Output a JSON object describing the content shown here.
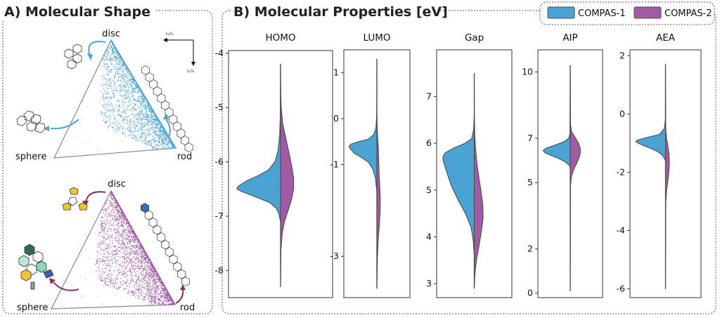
{
  "colors": {
    "compas1": "#4aa3d2",
    "compas2": "#a15aa4",
    "outline": "#4d4d4d"
  },
  "panel_a": {
    "title": "A)  Molecular Shape",
    "ternary_labels": {
      "top": "disc",
      "left": "sphere",
      "right": "rod"
    },
    "inset_axis_labels": {
      "horizontal": "I₁/I₃",
      "vertical": "I₂/I₃"
    }
  },
  "panel_b": {
    "title": "B) Molecular Properties [eV]"
  },
  "chart_data": {
    "type": "violin",
    "legend": {
      "position": "top-right",
      "entries": [
        "COMPAS-1",
        "COMPAS-2"
      ]
    },
    "series": [
      {
        "name": "COMPAS-1",
        "side": "left"
      },
      {
        "name": "COMPAS-2",
        "side": "right"
      }
    ],
    "panels": [
      {
        "label": "HOMO",
        "ylim": [
          -8.5,
          -3.95
        ],
        "ticks": [
          -4,
          -5,
          -6,
          -7,
          -8
        ],
        "ymin": -8.3,
        "ymax": -4.2,
        "compas1": [
          [
            -8.3,
            0
          ],
          [
            -7.1,
            0
          ],
          [
            -6.95,
            0.04
          ],
          [
            -6.85,
            0.1
          ],
          [
            -6.75,
            0.25
          ],
          [
            -6.65,
            0.55
          ],
          [
            -6.55,
            0.88
          ],
          [
            -6.5,
            1.0
          ],
          [
            -6.45,
            0.97
          ],
          [
            -6.35,
            0.78
          ],
          [
            -6.25,
            0.5
          ],
          [
            -6.15,
            0.28
          ],
          [
            -6.0,
            0.13
          ],
          [
            -5.8,
            0.06
          ],
          [
            -5.5,
            0.02
          ],
          [
            -5.1,
            0.005
          ],
          [
            -4.2,
            0
          ]
        ],
        "compas2": [
          [
            -8.3,
            0
          ],
          [
            -7.6,
            0.01
          ],
          [
            -7.3,
            0.04
          ],
          [
            -7.1,
            0.09
          ],
          [
            -6.9,
            0.17
          ],
          [
            -6.7,
            0.25
          ],
          [
            -6.5,
            0.3
          ],
          [
            -6.3,
            0.3
          ],
          [
            -6.1,
            0.26
          ],
          [
            -5.9,
            0.21
          ],
          [
            -5.6,
            0.13
          ],
          [
            -5.3,
            0.05
          ],
          [
            -5.0,
            0.015
          ],
          [
            -4.7,
            0.005
          ],
          [
            -4.2,
            0
          ]
        ]
      },
      {
        "label": "LUMO",
        "ylim": [
          -3.9,
          1.5
        ],
        "ticks": [
          1,
          0,
          -1,
          -3
        ],
        "ymin": -3.7,
        "ymax": 1.3,
        "compas1": [
          [
            -3.7,
            0
          ],
          [
            -1.6,
            0
          ],
          [
            -1.3,
            0.05
          ],
          [
            -1.1,
            0.15
          ],
          [
            -0.95,
            0.3
          ],
          [
            -0.85,
            0.55
          ],
          [
            -0.75,
            0.82
          ],
          [
            -0.65,
            0.97
          ],
          [
            -0.6,
            1.0
          ],
          [
            -0.55,
            0.92
          ],
          [
            -0.5,
            0.65
          ],
          [
            -0.45,
            0.32
          ],
          [
            -0.35,
            0.12
          ],
          [
            -0.2,
            0.03
          ],
          [
            0.1,
            0.005
          ],
          [
            1.3,
            0
          ]
        ],
        "compas2": [
          [
            -3.7,
            0
          ],
          [
            -3.0,
            0.02
          ],
          [
            -2.6,
            0.05
          ],
          [
            -2.3,
            0.09
          ],
          [
            -2.0,
            0.12
          ],
          [
            -1.7,
            0.12
          ],
          [
            -1.4,
            0.1
          ],
          [
            -1.2,
            0.08
          ],
          [
            -1.0,
            0.07
          ],
          [
            -0.8,
            0.06
          ],
          [
            -0.6,
            0.05
          ],
          [
            -0.4,
            0.025
          ],
          [
            -0.1,
            0.008
          ],
          [
            0.3,
            0
          ],
          [
            1.3,
            0
          ]
        ]
      },
      {
        "label": "Gap",
        "ylim": [
          2.7,
          8.0
        ],
        "ticks": [
          7,
          6,
          5,
          4,
          3
        ],
        "ymin": 2.9,
        "ymax": 7.5,
        "compas1": [
          [
            2.9,
            0
          ],
          [
            3.6,
            0
          ],
          [
            3.9,
            0.03
          ],
          [
            4.2,
            0.1
          ],
          [
            4.5,
            0.28
          ],
          [
            4.8,
            0.52
          ],
          [
            5.1,
            0.73
          ],
          [
            5.4,
            0.88
          ],
          [
            5.6,
            0.97
          ],
          [
            5.7,
            1.0
          ],
          [
            5.8,
            0.92
          ],
          [
            5.9,
            0.65
          ],
          [
            6.0,
            0.3
          ],
          [
            6.1,
            0.08
          ],
          [
            6.3,
            0.02
          ],
          [
            6.6,
            0
          ],
          [
            7.5,
            0
          ]
        ],
        "compas2": [
          [
            2.9,
            0
          ],
          [
            3.2,
            0.02
          ],
          [
            3.5,
            0.07
          ],
          [
            3.8,
            0.15
          ],
          [
            4.1,
            0.22
          ],
          [
            4.4,
            0.28
          ],
          [
            4.7,
            0.27
          ],
          [
            5.0,
            0.21
          ],
          [
            5.3,
            0.14
          ],
          [
            5.6,
            0.08
          ],
          [
            5.9,
            0.04
          ],
          [
            6.2,
            0.015
          ],
          [
            6.6,
            0.004
          ],
          [
            7.5,
            0
          ]
        ]
      },
      {
        "label": "AIP",
        "ylim": [
          -0.2,
          11.0
        ],
        "ticks": [
          10,
          7,
          5,
          2,
          0
        ],
        "ymin": 0.1,
        "ymax": 10.3,
        "compas1": [
          [
            0.1,
            0
          ],
          [
            5.7,
            0
          ],
          [
            5.8,
            0.05
          ],
          [
            5.95,
            0.2
          ],
          [
            6.1,
            0.45
          ],
          [
            6.25,
            0.75
          ],
          [
            6.35,
            0.93
          ],
          [
            6.45,
            1.0
          ],
          [
            6.55,
            0.9
          ],
          [
            6.7,
            0.55
          ],
          [
            6.85,
            0.22
          ],
          [
            7.0,
            0.06
          ],
          [
            7.2,
            0.01
          ],
          [
            10.3,
            0
          ]
        ],
        "compas2": [
          [
            0.1,
            0
          ],
          [
            4.9,
            0.01
          ],
          [
            5.3,
            0.05
          ],
          [
            5.6,
            0.13
          ],
          [
            5.9,
            0.25
          ],
          [
            6.2,
            0.35
          ],
          [
            6.5,
            0.38
          ],
          [
            6.8,
            0.3
          ],
          [
            7.1,
            0.15
          ],
          [
            7.3,
            0.05
          ],
          [
            7.6,
            0.01
          ],
          [
            10.3,
            0
          ]
        ]
      },
      {
        "label": "AEA",
        "ylim": [
          -6.3,
          2.2
        ],
        "ticks": [
          2,
          0,
          -2,
          -4,
          -6
        ],
        "ymin": -6.0,
        "ymax": 1.7,
        "compas1": [
          [
            -6.0,
            0
          ],
          [
            -1.6,
            0
          ],
          [
            -1.5,
            0.05
          ],
          [
            -1.4,
            0.12
          ],
          [
            -1.3,
            0.25
          ],
          [
            -1.2,
            0.45
          ],
          [
            -1.1,
            0.7
          ],
          [
            -1.0,
            0.92
          ],
          [
            -0.95,
            1.0
          ],
          [
            -0.9,
            0.95
          ],
          [
            -0.8,
            0.6
          ],
          [
            -0.7,
            0.2
          ],
          [
            -0.5,
            0.04
          ],
          [
            -0.2,
            0.005
          ],
          [
            1.7,
            0
          ]
        ],
        "compas2": [
          [
            -6.0,
            0
          ],
          [
            -3.0,
            0.01
          ],
          [
            -2.6,
            0.04
          ],
          [
            -2.3,
            0.08
          ],
          [
            -2.0,
            0.11
          ],
          [
            -1.7,
            0.13
          ],
          [
            -1.4,
            0.12
          ],
          [
            -1.1,
            0.08
          ],
          [
            -0.8,
            0.03
          ],
          [
            -0.5,
            0.008
          ],
          [
            1.7,
            0
          ]
        ]
      }
    ]
  }
}
